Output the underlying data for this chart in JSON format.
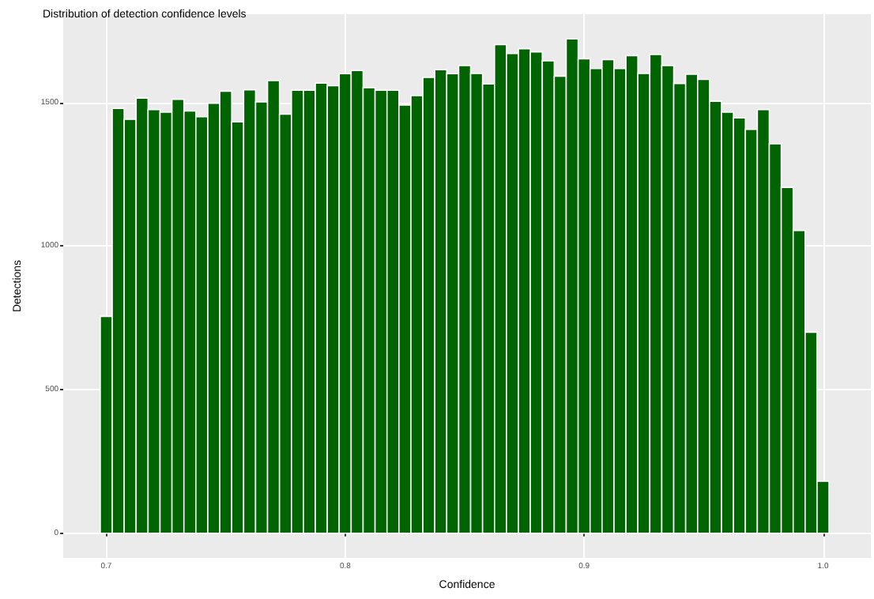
{
  "chart_data": {
    "type": "histogram",
    "title": "Distribution of detection confidence levels",
    "xlabel": "Confidence",
    "ylabel": "Detections",
    "bins": [
      0.6975,
      0.7025,
      0.7075,
      0.7125,
      0.7175,
      0.7225,
      0.7275,
      0.7325,
      0.7375,
      0.7425,
      0.7475,
      0.7525,
      0.7575,
      0.7625,
      0.7675,
      0.7725,
      0.7775,
      0.7825,
      0.7875,
      0.7925,
      0.7975,
      0.8025,
      0.8075,
      0.8125,
      0.8175,
      0.8225,
      0.8275,
      0.8325,
      0.8375,
      0.8425,
      0.8475,
      0.8525,
      0.8575,
      0.8625,
      0.8675,
      0.8725,
      0.8775,
      0.8825,
      0.8875,
      0.8925,
      0.8975,
      0.9025,
      0.9075,
      0.9125,
      0.9175,
      0.9225,
      0.9275,
      0.9325,
      0.9375,
      0.9425,
      0.9475,
      0.9525,
      0.9575,
      0.9625,
      0.9675,
      0.9725,
      0.9775,
      0.9825,
      0.9875,
      0.9925,
      0.9975,
      1.0025
    ],
    "values": [
      755,
      1479,
      1441,
      1515,
      1475,
      1466,
      1511,
      1470,
      1450,
      1497,
      1539,
      1432,
      1544,
      1502,
      1576,
      1459,
      1542,
      1542,
      1567,
      1558,
      1600,
      1611,
      1551,
      1542,
      1542,
      1491,
      1524,
      1587,
      1614,
      1600,
      1628,
      1601,
      1564,
      1701,
      1670,
      1687,
      1676,
      1645,
      1591,
      1721,
      1652,
      1618,
      1649,
      1618,
      1663,
      1601,
      1667,
      1628,
      1566,
      1598,
      1580,
      1504,
      1466,
      1446,
      1406,
      1475,
      1356,
      1204,
      1054,
      700,
      181
    ],
    "color": "#006400",
    "xlim": [
      0.682,
      1.02
    ],
    "ylim": [
      -86,
      1807
    ],
    "xticks": [
      0.7,
      0.8,
      0.9,
      {
        "value": 1,
        "label": "1.0"
      }
    ],
    "yticks": [
      0,
      500,
      1000,
      1500
    ],
    "grid": true
  }
}
